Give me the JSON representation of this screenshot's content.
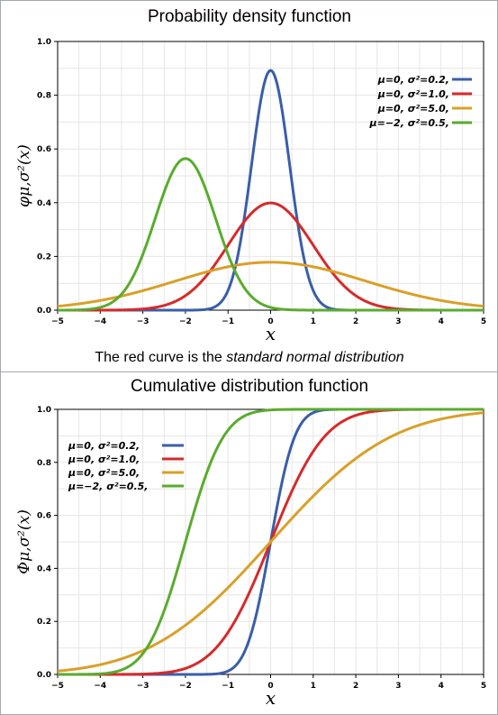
{
  "pdf": {
    "title": "Probability density function",
    "caption_prefix": "The red curve is the ",
    "caption_italic": "standard normal distribution",
    "ylabel": "φμ,σ²(x)",
    "xlabel": "x"
  },
  "cdf": {
    "title": "Cumulative distribution function",
    "ylabel": "Φμ,σ²(x)",
    "xlabel": "x"
  },
  "chart_data": [
    {
      "type": "line",
      "title": "Probability density function",
      "xlabel": "x",
      "ylabel": "φμ,σ²(x)",
      "xlim": [
        -5,
        5
      ],
      "ylim": [
        0,
        1.0
      ],
      "xticks": [
        "−5",
        "−4",
        "−3",
        "−2",
        "−1",
        "0",
        "1",
        "2",
        "3",
        "4",
        "5"
      ],
      "yticks": [
        "0.0",
        "0.2",
        "0.4",
        "0.6",
        "0.8",
        "1.0"
      ],
      "grid": true,
      "legend_position": "top-right",
      "series": [
        {
          "name": "μ=0,  σ²=0.2,",
          "mu": 0,
          "variance": 0.2,
          "color": "#3a5ea8"
        },
        {
          "name": "μ=0,  σ²=1.0,",
          "mu": 0,
          "variance": 1.0,
          "color": "#d62a2a"
        },
        {
          "name": "μ=0,  σ²=5.0,",
          "mu": 0,
          "variance": 5.0,
          "color": "#d9a027"
        },
        {
          "name": "μ=−2, σ²=0.5,",
          "mu": -2,
          "variance": 0.5,
          "color": "#5aab2e"
        }
      ]
    },
    {
      "type": "line",
      "title": "Cumulative distribution function",
      "xlabel": "x",
      "ylabel": "Φμ,σ²(x)",
      "xlim": [
        -5,
        5
      ],
      "ylim": [
        0,
        1.0
      ],
      "xticks": [
        "−5",
        "−4",
        "−3",
        "−2",
        "−1",
        "0",
        "1",
        "2",
        "3",
        "4",
        "5"
      ],
      "yticks": [
        "0.0",
        "0.2",
        "0.4",
        "0.6",
        "0.8",
        "1.0"
      ],
      "grid": true,
      "legend_position": "top-left",
      "series": [
        {
          "name": "μ=0,   σ²=0.2,",
          "mu": 0,
          "variance": 0.2,
          "color": "#3a5ea8"
        },
        {
          "name": "μ=0,   σ²=1.0,",
          "mu": 0,
          "variance": 1.0,
          "color": "#d62a2a"
        },
        {
          "name": "μ=0,   σ²=5.0,",
          "mu": 0,
          "variance": 5.0,
          "color": "#d9a027"
        },
        {
          "name": "μ=−2,  σ²=0.5,",
          "mu": -2,
          "variance": 0.5,
          "color": "#5aab2e"
        }
      ]
    }
  ]
}
